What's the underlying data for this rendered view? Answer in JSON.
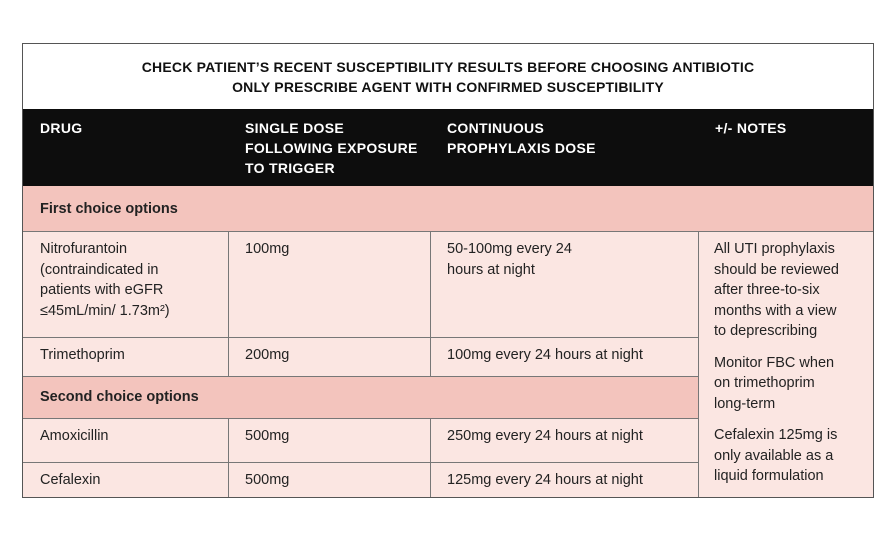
{
  "banner": {
    "line1": "CHECK PATIENT’S RECENT SUSCEPTIBILITY RESULTS BEFORE CHOOSING ANTIBIOTIC",
    "line2": "ONLY PRESCRIBE AGENT WITH CONFIRMED SUSCEPTIBILITY"
  },
  "headers": {
    "drug": "DRUG",
    "single_dose": [
      "SINGLE DOSE",
      "FOLLOWING EXPOSURE",
      "TO TRIGGER"
    ],
    "continuous": [
      "CONTINUOUS",
      "PROPHYLAXIS DOSE"
    ],
    "notes": "+/- NOTES"
  },
  "sections": {
    "first": "First choice options",
    "second": "Second choice options"
  },
  "rows": [
    {
      "drug_lines": [
        "Nitrofurantoin",
        "(contraindicated in",
        "patients with eGFR",
        "≤45mL/min/ 1.73m²)"
      ],
      "single": "100mg",
      "continuous_lines": [
        "50-100mg every 24",
        "hours at night"
      ]
    },
    {
      "drug": "Trimethoprim",
      "single": "200mg",
      "continuous": "100mg every 24 hours at night"
    },
    {
      "drug": "Amoxicillin",
      "single": "500mg",
      "continuous": "250mg every 24 hours at night"
    },
    {
      "drug": "Cefalexin",
      "single": "500mg",
      "continuous": "125mg every 24 hours at night"
    }
  ],
  "notes": [
    [
      "All UTI prophylaxis",
      "should be reviewed",
      "after three-to-six",
      "months with a view",
      "to deprescribing"
    ],
    [
      "Monitor FBC when",
      "on trimethoprim",
      "long-term"
    ],
    [
      "Cefalexin 125mg is",
      "only available as a",
      "liquid formulation"
    ]
  ],
  "colors": {
    "header_bg": "#0d0d0d",
    "section_bg": "#f3c4bd",
    "cell_bg": "#fbe6e2"
  }
}
